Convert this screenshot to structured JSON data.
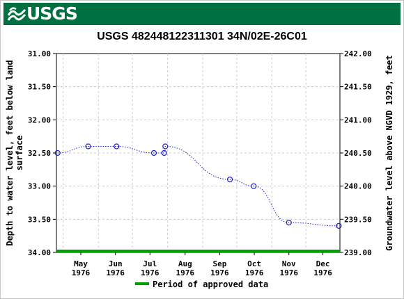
{
  "header": {
    "logo_text": "USGS",
    "logo_icon": "usgs-wave-icon",
    "banner_color": "#006f41"
  },
  "chart_data": {
    "type": "line",
    "title": "USGS 482448122311301 34N/02E-26C01",
    "ylabel_left": "Depth to water level, feet below land surface",
    "ylabel_left_lines": [
      "Depth to water level, feet below land",
      "surface"
    ],
    "ylabel_right": "Groundwater level above NGVD 1929, feet",
    "y_left_lim": [
      31.0,
      34.0
    ],
    "y_left_inverted": true,
    "y_right_lim": [
      239.0,
      242.0
    ],
    "y_left_ticks": [
      "31.00",
      "31.50",
      "32.00",
      "32.50",
      "33.00",
      "33.50",
      "34.00"
    ],
    "y_right_ticks": [
      "242.00",
      "241.50",
      "241.00",
      "240.50",
      "240.00",
      "239.50",
      "239.00"
    ],
    "x_lim": [
      "1976-04-25",
      "1976-12-31"
    ],
    "x_ticks": [
      {
        "month": "May",
        "year": "1976",
        "date": "1976-05-01"
      },
      {
        "month": "Jun",
        "year": "1976",
        "date": "1976-06-01"
      },
      {
        "month": "Jul",
        "year": "1976",
        "date": "1976-07-01"
      },
      {
        "month": "Aug",
        "year": "1976",
        "date": "1976-08-01"
      },
      {
        "month": "Sep",
        "year": "1976",
        "date": "1976-09-01"
      },
      {
        "month": "Oct",
        "year": "1976",
        "date": "1976-10-01"
      },
      {
        "month": "Nov",
        "year": "1976",
        "date": "1976-11-01"
      },
      {
        "month": "Dec",
        "year": "1976",
        "date": "1976-12-01"
      }
    ],
    "grid": true,
    "series": [
      {
        "line_color": "#1c1ccc",
        "marker": "circle",
        "points": [
          {
            "date": "1976-04-26",
            "depth": 32.5
          },
          {
            "date": "1976-05-23",
            "depth": 32.4
          },
          {
            "date": "1976-06-17",
            "depth": 32.4
          },
          {
            "date": "1976-07-20",
            "depth": 32.5
          },
          {
            "date": "1976-07-29",
            "depth": 32.5
          },
          {
            "date": "1976-07-30",
            "depth": 32.4
          },
          {
            "date": "1976-09-25",
            "depth": 32.9
          },
          {
            "date": "1976-10-16",
            "depth": 33.0
          },
          {
            "date": "1976-11-16",
            "depth": 33.55
          },
          {
            "date": "1976-12-30",
            "depth": 33.6
          }
        ]
      }
    ],
    "approved_period": {
      "start": "1976-04-25",
      "end": "1976-12-31",
      "color": "#00a000"
    },
    "legend": {
      "label": "Period of approved data",
      "color": "#00a000",
      "position": "bottom-center"
    }
  }
}
